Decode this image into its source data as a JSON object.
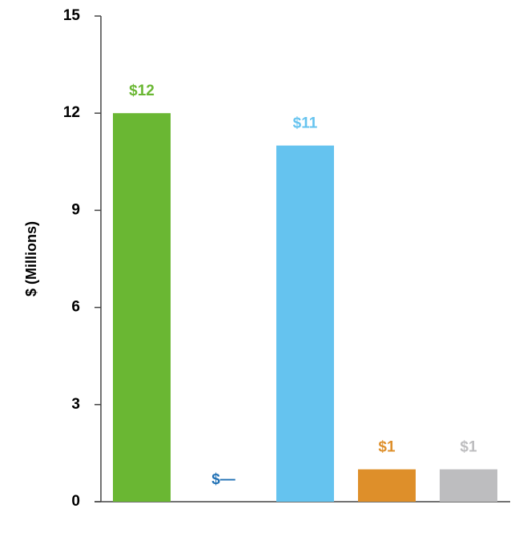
{
  "chart_data": {
    "type": "bar",
    "y_label": "$ (Millions)",
    "values": [
      12,
      0,
      11,
      1,
      1
    ],
    "value_labels": [
      "$12",
      "$—",
      "$11",
      "$1",
      "$1"
    ],
    "colors": [
      "#6ab733",
      "#2171b5",
      "#65c3ef",
      "#de8f2a",
      "#bdbdbf"
    ],
    "ylim": [
      0,
      15
    ],
    "yticks": [
      0,
      3,
      6,
      9,
      12,
      15
    ],
    "grid": false
  }
}
